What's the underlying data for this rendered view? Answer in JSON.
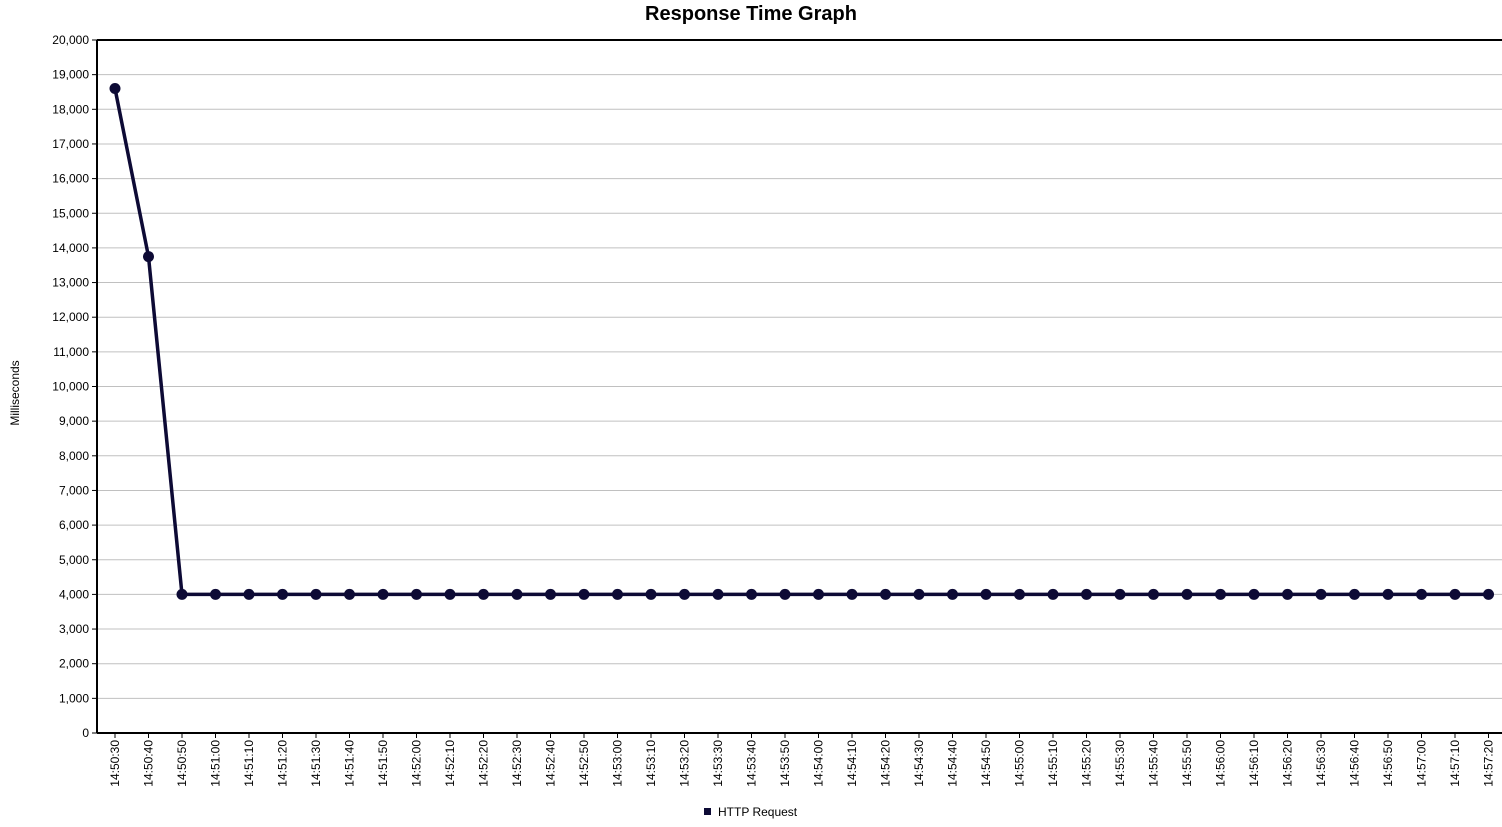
{
  "chart_data": {
    "type": "line",
    "title": "Response Time Graph",
    "xlabel": "",
    "ylabel": "Milliseconds",
    "ylim": [
      0,
      20000
    ],
    "ytick_step": 1000,
    "grid": true,
    "legend_position": "bottom",
    "x": [
      "14:50:30",
      "14:50:40",
      "14:50:50",
      "14:51:00",
      "14:51:10",
      "14:51:20",
      "14:51:30",
      "14:51:40",
      "14:51:50",
      "14:52:00",
      "14:52:10",
      "14:52:20",
      "14:52:30",
      "14:52:40",
      "14:52:50",
      "14:53:00",
      "14:53:10",
      "14:53:20",
      "14:53:30",
      "14:53:40",
      "14:53:50",
      "14:54:00",
      "14:54:10",
      "14:54:20",
      "14:54:30",
      "14:54:40",
      "14:54:50",
      "14:55:00",
      "14:55:10",
      "14:55:20",
      "14:55:30",
      "14:55:40",
      "14:55:50",
      "14:56:00",
      "14:56:10",
      "14:56:20",
      "14:56:30",
      "14:56:40",
      "14:56:50",
      "14:57:00",
      "14:57:10",
      "14:57:20"
    ],
    "series": [
      {
        "name": "HTTP Request",
        "color": "#0d0a35",
        "values": [
          18600,
          13750,
          4000,
          4000,
          4000,
          4000,
          4000,
          4000,
          4000,
          4000,
          4000,
          4000,
          4000,
          4000,
          4000,
          4000,
          4000,
          4000,
          4000,
          4000,
          4000,
          4000,
          4000,
          4000,
          4000,
          4000,
          4000,
          4000,
          4000,
          4000,
          4000,
          4000,
          4000,
          4000,
          4000,
          4000,
          4000,
          4000,
          4000,
          4000,
          4000,
          4000
        ]
      }
    ]
  }
}
